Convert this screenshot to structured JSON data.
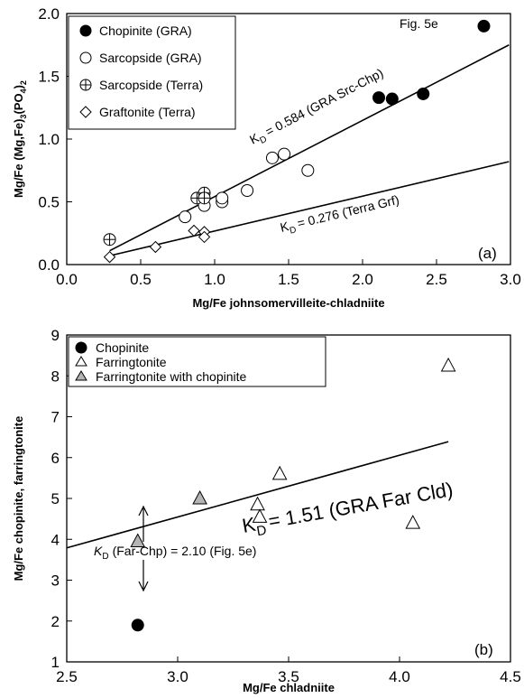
{
  "chart_data": [
    {
      "type": "scatter",
      "panel_label": "(a)",
      "xlabel": "Mg/Fe johnsomervilleite-chladniite",
      "ylabel": "Mg/Fe (Mg,Fe)3(PO4)2",
      "xlim": [
        0.0,
        3.0
      ],
      "ylim": [
        0.0,
        2.0
      ],
      "xticks": [
        "0.0",
        "0.5",
        "1.0",
        "1.5",
        "2.0",
        "2.5",
        "3.0"
      ],
      "yticks": [
        "0.0",
        "0.5",
        "1.0",
        "1.5",
        "2.0"
      ],
      "legend": [
        "Chopinite (GRA)",
        "Sarcopside (GRA)",
        "Sarcopside (Terra)",
        "Graftonite (Terra)"
      ],
      "series": [
        {
          "name": "Chopinite (GRA)",
          "marker": "filled-circle",
          "x": [
            2.11,
            2.2,
            2.41,
            2.82
          ],
          "y": [
            1.33,
            1.32,
            1.36,
            1.9
          ]
        },
        {
          "name": "Sarcopside (GRA)",
          "marker": "open-circle",
          "x": [
            0.8,
            0.93,
            1.05,
            1.05,
            1.22,
            1.39,
            1.47,
            1.63
          ],
          "y": [
            0.38,
            0.47,
            0.5,
            0.53,
            0.59,
            0.85,
            0.88,
            0.75
          ]
        },
        {
          "name": "Sarcopside (Terra)",
          "marker": "crossed-circle",
          "x": [
            0.29,
            0.88,
            0.93,
            0.93
          ],
          "y": [
            0.2,
            0.53,
            0.57,
            0.53
          ]
        },
        {
          "name": "Graftonite (Terra)",
          "marker": "open-diamond",
          "x": [
            0.29,
            0.6,
            0.86,
            0.93,
            0.93
          ],
          "y": [
            0.06,
            0.14,
            0.27,
            0.26,
            0.22
          ]
        }
      ],
      "lines": [
        {
          "x": [
            0.29,
            2.99
          ],
          "y": [
            0.11,
            1.75
          ]
        },
        {
          "x": [
            0.29,
            2.99
          ],
          "y": [
            0.07,
            0.82
          ]
        }
      ],
      "annotations": [
        "Fig. 5e",
        "= 0.584 (GRA Src-Chp)",
        "= 0.276 (Terra Grf)"
      ]
    },
    {
      "type": "scatter",
      "panel_label": "(b)",
      "xlabel": "Mg/Fe chladniite",
      "ylabel": "Mg/Fe chopinite, farringtonite",
      "xlim": [
        2.5,
        4.5
      ],
      "ylim": [
        1,
        9
      ],
      "xticks": [
        "2.5",
        "3.0",
        "3.5",
        "4.0",
        "4.5"
      ],
      "yticks": [
        "1",
        "2",
        "3",
        "4",
        "5",
        "6",
        "7",
        "8",
        "9"
      ],
      "legend": [
        "Chopinite",
        "Farringtonite",
        "Farringtonite with chopinite"
      ],
      "series": [
        {
          "name": "Chopinite",
          "marker": "filled-circle",
          "x": [
            2.82
          ],
          "y": [
            1.9
          ]
        },
        {
          "name": "Farringtonite",
          "marker": "open-triangle",
          "x": [
            3.36,
            3.37,
            3.46,
            4.06,
            4.22
          ],
          "y": [
            4.85,
            4.55,
            5.6,
            4.4,
            8.25
          ]
        },
        {
          "name": "Farringtonite with chopinite",
          "marker": "gray-triangle",
          "x": [
            2.82,
            3.1
          ],
          "y": [
            3.95,
            5.0
          ]
        }
      ],
      "lines": [
        {
          "x": [
            2.5,
            4.22
          ],
          "y": [
            3.79,
            6.39
          ]
        }
      ],
      "annotations": [
        "= 1.51 (GRA Far Cld)",
        "(Far-Chp) = 2.10 (Fig. 5e)"
      ]
    }
  ]
}
